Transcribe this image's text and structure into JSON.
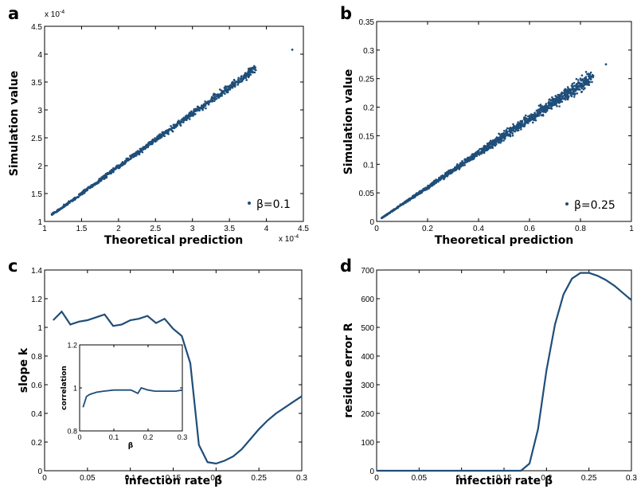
{
  "colors": {
    "series": "#1f4e79",
    "axis": "#000000",
    "background": "#ffffff"
  },
  "chart_data": [
    {
      "panel": "a",
      "type": "scatter",
      "xlabel": "Theoretical prediction",
      "ylabel": "Simulation value",
      "xlim": [
        1.0,
        4.5
      ],
      "ylim": [
        1.0,
        4.5
      ],
      "scale_label_x": "x 10^-4",
      "scale_label_y": "x 10^-4",
      "xticks": [
        "1",
        "1.5",
        "2",
        "2.5",
        "3",
        "3.5",
        "4",
        "4.5"
      ],
      "yticks": [
        "1",
        "1.5",
        "2",
        "2.5",
        "3",
        "3.5",
        "4",
        "4.5"
      ],
      "legend": "β=0.1",
      "legend_position": "bottom-right",
      "series": [
        {
          "name": "β=0.1",
          "x": [
            1.1,
            1.2,
            1.3,
            1.4,
            1.5,
            1.6,
            1.7,
            1.8,
            1.9,
            2.0,
            2.1,
            2.2,
            2.3,
            2.4,
            2.5,
            2.6,
            2.7,
            2.8,
            2.9,
            3.0,
            3.1,
            3.2,
            3.3,
            3.4,
            3.5,
            3.6,
            3.7,
            3.75,
            3.85,
            4.35
          ],
          "y": [
            1.12,
            1.21,
            1.31,
            1.4,
            1.5,
            1.6,
            1.69,
            1.79,
            1.89,
            1.98,
            2.08,
            2.18,
            2.27,
            2.37,
            2.46,
            2.56,
            2.65,
            2.75,
            2.84,
            2.94,
            3.03,
            3.12,
            3.22,
            3.31,
            3.4,
            3.5,
            3.58,
            3.65,
            3.76,
            4.08
          ]
        }
      ]
    },
    {
      "panel": "b",
      "type": "scatter",
      "xlabel": "Theoretical prediction",
      "ylabel": "Simulation value",
      "xlim": [
        0,
        1
      ],
      "ylim": [
        0,
        0.35
      ],
      "xticks": [
        "0",
        "0.2",
        "0.4",
        "0.6",
        "0.8",
        "1"
      ],
      "yticks": [
        "0",
        "0.05",
        "0.1",
        "0.15",
        "0.2",
        "0.25",
        "0.3",
        "0.35"
      ],
      "legend": "β=0.25",
      "legend_position": "bottom-right",
      "series": [
        {
          "name": "β=0.25",
          "x": [
            0.02,
            0.05,
            0.1,
            0.15,
            0.2,
            0.25,
            0.3,
            0.35,
            0.4,
            0.45,
            0.5,
            0.55,
            0.6,
            0.65,
            0.7,
            0.75,
            0.8,
            0.85,
            0.9
          ],
          "y": [
            0.006,
            0.015,
            0.03,
            0.045,
            0.06,
            0.075,
            0.09,
            0.105,
            0.12,
            0.135,
            0.15,
            0.165,
            0.18,
            0.195,
            0.21,
            0.225,
            0.24,
            0.255,
            0.275
          ]
        }
      ]
    },
    {
      "panel": "c",
      "type": "line",
      "xlabel": "infection rate β",
      "ylabel": "slope k",
      "xlim": [
        0,
        0.3
      ],
      "ylim": [
        0,
        1.4
      ],
      "xticks": [
        "0",
        "0.05",
        "0.1",
        "0.15",
        "0.2",
        "0.25",
        "0.3"
      ],
      "yticks": [
        "0",
        "0.2",
        "0.4",
        "0.6",
        "0.8",
        "1",
        "1.2",
        "1.4"
      ],
      "x": [
        0.01,
        0.02,
        0.03,
        0.04,
        0.05,
        0.06,
        0.07,
        0.08,
        0.09,
        0.1,
        0.11,
        0.12,
        0.13,
        0.14,
        0.15,
        0.16,
        0.17,
        0.18,
        0.19,
        0.2,
        0.21,
        0.22,
        0.23,
        0.24,
        0.25,
        0.26,
        0.27,
        0.28,
        0.29,
        0.3
      ],
      "values": [
        1.05,
        1.11,
        1.02,
        1.04,
        1.05,
        1.07,
        1.09,
        1.01,
        1.02,
        1.05,
        1.06,
        1.08,
        1.03,
        1.06,
        0.99,
        0.94,
        0.75,
        0.18,
        0.06,
        0.05,
        0.07,
        0.1,
        0.15,
        0.22,
        0.29,
        0.35,
        0.4,
        0.44,
        0.48,
        0.52
      ],
      "inset": {
        "type": "line",
        "xlabel": "β",
        "ylabel": "correlation",
        "xlim": [
          0,
          0.3
        ],
        "ylim": [
          0.8,
          1.2
        ],
        "xticks": [
          "0",
          "0.1",
          "0.2",
          "0.3"
        ],
        "yticks": [
          "0.8",
          "1",
          "1.2"
        ],
        "x": [
          0.01,
          0.02,
          0.03,
          0.05,
          0.07,
          0.1,
          0.13,
          0.15,
          0.17,
          0.18,
          0.2,
          0.22,
          0.25,
          0.28,
          0.3
        ],
        "values": [
          0.91,
          0.96,
          0.97,
          0.98,
          0.985,
          0.99,
          0.99,
          0.99,
          0.975,
          1.0,
          0.99,
          0.985,
          0.985,
          0.985,
          0.99
        ]
      }
    },
    {
      "panel": "d",
      "type": "line",
      "xlabel": "infection rate β",
      "ylabel": "residue error R",
      "xlim": [
        0,
        0.3
      ],
      "ylim": [
        0,
        700
      ],
      "xticks": [
        "0",
        "0.05",
        "0.1",
        "0.15",
        "0.2",
        "0.25",
        "0.3"
      ],
      "yticks": [
        "0",
        "100",
        "200",
        "300",
        "400",
        "500",
        "600",
        "700"
      ],
      "x": [
        0,
        0.05,
        0.1,
        0.15,
        0.17,
        0.18,
        0.19,
        0.2,
        0.21,
        0.22,
        0.23,
        0.24,
        0.25,
        0.26,
        0.27,
        0.28,
        0.29,
        0.3
      ],
      "values": [
        0,
        0,
        0,
        0,
        0,
        25,
        145,
        350,
        510,
        615,
        670,
        690,
        690,
        680,
        665,
        645,
        620,
        595
      ]
    }
  ]
}
